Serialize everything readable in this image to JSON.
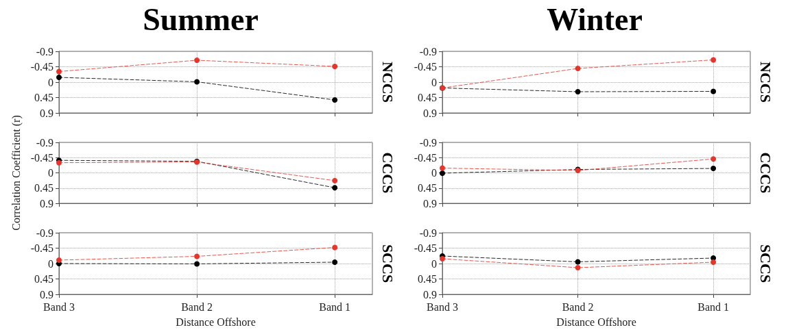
{
  "chart_data": [
    {
      "type": "line",
      "title": "Summer",
      "y2label": "NCCS",
      "categories": [
        null,
        null,
        null
      ],
      "ylim": [
        0.9,
        -0.9
      ],
      "yticks": [
        -0.9,
        -0.45,
        0,
        0.45,
        0.9
      ],
      "grid": true,
      "marker": "circle",
      "line_style": "dashed",
      "tick_labels": "y",
      "series": [
        {
          "color": "#e8352b",
          "values": [
            -0.31,
            -0.64,
            -0.46
          ]
        },
        {
          "color": "#000000",
          "values": [
            -0.14,
            -0.01,
            0.52
          ]
        }
      ]
    },
    {
      "type": "line",
      "title": "Winter",
      "y2label": "NCCS",
      "categories": [
        null,
        null,
        null
      ],
      "ylim": [
        0.9,
        -0.9
      ],
      "yticks": [
        -0.9,
        -0.45,
        0,
        0.45,
        0.9
      ],
      "grid": true,
      "marker": "circle",
      "line_style": "dashed",
      "tick_labels": "y",
      "series": [
        {
          "color": "#000000",
          "values": [
            0.17,
            0.28,
            0.27
          ]
        },
        {
          "color": "#e8352b",
          "values": [
            0.17,
            -0.4,
            -0.65
          ]
        }
      ]
    },
    {
      "type": "line",
      "ylabel": "Correlation Coefficient (r)",
      "y2label": "CCCS",
      "categories": [
        null,
        null,
        null
      ],
      "ylim": [
        0.9,
        -0.9
      ],
      "yticks": [
        -0.9,
        -0.45,
        0,
        0.45,
        0.9
      ],
      "grid": true,
      "marker": "circle",
      "line_style": "dashed",
      "tick_labels": "y",
      "series": [
        {
          "color": "#000000",
          "values": [
            -0.37,
            -0.34,
            0.44
          ]
        },
        {
          "color": "#e8352b",
          "values": [
            -0.3,
            -0.32,
            0.23
          ]
        }
      ]
    },
    {
      "type": "line",
      "y2label": "CCCS",
      "categories": [
        null,
        null,
        null
      ],
      "ylim": [
        0.9,
        -0.9
      ],
      "yticks": [
        -0.9,
        -0.45,
        0,
        0.45,
        0.9
      ],
      "grid": true,
      "marker": "circle",
      "line_style": "dashed",
      "tick_labels": "y",
      "series": [
        {
          "color": "#000000",
          "values": [
            0.01,
            -0.1,
            -0.13
          ]
        },
        {
          "color": "#e8352b",
          "values": [
            -0.14,
            -0.07,
            -0.41
          ]
        }
      ]
    },
    {
      "type": "line",
      "xlabel": "Distance Offshore",
      "y2label": "SCCS",
      "categories": [
        "Band 3",
        "Band 2",
        "Band 1"
      ],
      "ylim": [
        0.9,
        -0.9
      ],
      "yticks": [
        -0.9,
        -0.45,
        0,
        0.45,
        0.9
      ],
      "grid": true,
      "marker": "circle",
      "line_style": "dashed",
      "series": [
        {
          "color": "#000000",
          "values": [
            0,
            0.01,
            -0.04
          ]
        },
        {
          "color": "#e8352b",
          "values": [
            -0.1,
            -0.21,
            -0.47
          ]
        }
      ]
    },
    {
      "type": "line",
      "xlabel": "Distance Offshore",
      "y2label": "SCCS",
      "categories": [
        "Band 3",
        "Band 2",
        "Band 1"
      ],
      "ylim": [
        0.9,
        -0.9
      ],
      "yticks": [
        -0.9,
        -0.45,
        0,
        0.45,
        0.9
      ],
      "grid": true,
      "marker": "circle",
      "line_style": "dashed",
      "series": [
        {
          "color": "#000000",
          "values": [
            -0.22,
            -0.05,
            -0.16
          ]
        },
        {
          "color": "#e8352b",
          "values": [
            -0.14,
            0.12,
            -0.04
          ]
        }
      ]
    }
  ]
}
